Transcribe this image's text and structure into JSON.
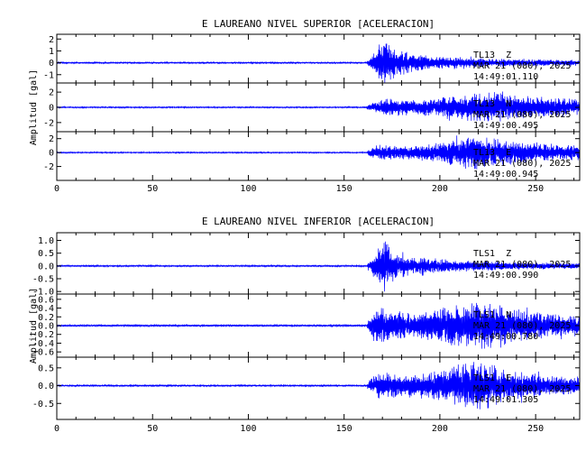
{
  "chart_data": [
    {
      "type": "line",
      "title": "E LAUREANO NIVEL SUPERIOR [ACELERACION]",
      "ylabel": "Amplitud [gal]",
      "xlim": [
        0,
        273
      ],
      "x_ticks": [
        0,
        50,
        100,
        150,
        200,
        250
      ],
      "color": "#0000ff",
      "traces": [
        {
          "station": "TL13",
          "component": "Z",
          "date": "MAR 21 (080), 2025",
          "time": "14:49:01.110",
          "ylim": [
            -1.7,
            2.4
          ],
          "y_ticks": [
            "2",
            "1",
            "0",
            "-1"
          ],
          "y_tick_values": [
            2,
            1,
            0,
            -1
          ],
          "onset": 162,
          "peak_time": 170,
          "peak_amp": 2.2,
          "noise": 0.04,
          "envelope": [
            [
              162,
              0.15
            ],
            [
              166,
              0.9
            ],
            [
              169,
              1.8
            ],
            [
              171,
              2.2
            ],
            [
              176,
              1.3
            ],
            [
              185,
              0.8
            ],
            [
              200,
              0.55
            ],
            [
              230,
              0.35
            ],
            [
              273,
              0.25
            ]
          ]
        },
        {
          "station": "TL13",
          "component": "N",
          "date": "MAR 21 (080), 2025",
          "time": "14:49:00.495",
          "ylim": [
            -3.2,
            3.2
          ],
          "y_ticks": [
            "2",
            "0",
            "-2"
          ],
          "y_tick_values": [
            2,
            0,
            -2
          ],
          "onset": 162,
          "peak_time": 220,
          "peak_amp": 2.0,
          "noise": 0.06,
          "envelope": [
            [
              162,
              0.3
            ],
            [
              168,
              1.0
            ],
            [
              175,
              1.2
            ],
            [
              190,
              1.0
            ],
            [
              205,
              1.5
            ],
            [
              220,
              2.0
            ],
            [
              240,
              1.6
            ],
            [
              260,
              1.3
            ],
            [
              273,
              1.1
            ]
          ]
        },
        {
          "station": "TL13",
          "component": "E",
          "date": "MAR 21 (080), 2025",
          "time": "14:49:00.945",
          "ylim": [
            -4.0,
            3.0
          ],
          "y_ticks": [
            "2",
            "0",
            "-2"
          ],
          "y_tick_values": [
            2,
            0,
            -2
          ],
          "onset": 162,
          "peak_time": 220,
          "peak_amp": 2.6,
          "noise": 0.06,
          "envelope": [
            [
              162,
              0.3
            ],
            [
              168,
              1.3
            ],
            [
              175,
              1.0
            ],
            [
              190,
              1.0
            ],
            [
              205,
              1.8
            ],
            [
              218,
              2.6
            ],
            [
              230,
              2.0
            ],
            [
              250,
              1.4
            ],
            [
              273,
              1.1
            ]
          ]
        }
      ]
    },
    {
      "type": "line",
      "title": "E LAUREANO NIVEL INFERIOR [ACELERACION]",
      "ylabel": "Amplitud [gal]",
      "xlim": [
        0,
        273
      ],
      "x_ticks": [
        0,
        50,
        100,
        150,
        200,
        250
      ],
      "color": "#0000ff",
      "traces": [
        {
          "station": "TLS1",
          "component": "Z",
          "date": "MAR 21 (080), 2025",
          "time": "14:49:00.990",
          "ylim": [
            -1.1,
            1.3
          ],
          "y_ticks": [
            "1.0",
            "0.5",
            "0.0",
            "-0.5",
            "-1.0"
          ],
          "y_tick_values": [
            1.0,
            0.5,
            0.0,
            -0.5,
            -1.0
          ],
          "onset": 162,
          "peak_time": 170,
          "peak_amp": 1.15,
          "noise": 0.02,
          "envelope": [
            [
              162,
              0.08
            ],
            [
              166,
              0.5
            ],
            [
              169,
              0.95
            ],
            [
              171,
              1.15
            ],
            [
              176,
              0.6
            ],
            [
              185,
              0.35
            ],
            [
              205,
              0.25
            ],
            [
              240,
              0.15
            ],
            [
              273,
              0.12
            ]
          ]
        },
        {
          "station": "TLS1",
          "component": "N",
          "date": "MAR 21 (080), 2025",
          "time": "14:49:00.780",
          "ylim": [
            -0.72,
            0.72
          ],
          "y_ticks": [
            "0.6",
            "0.4",
            "0.2",
            "0.0",
            "-0.2",
            "-0.4",
            "-0.6"
          ],
          "y_tick_values": [
            0.6,
            0.4,
            0.2,
            0.0,
            -0.2,
            -0.4,
            -0.6
          ],
          "onset": 162,
          "peak_time": 218,
          "peak_amp": 0.6,
          "noise": 0.015,
          "envelope": [
            [
              162,
              0.1
            ],
            [
              168,
              0.45
            ],
            [
              175,
              0.35
            ],
            [
              190,
              0.3
            ],
            [
              205,
              0.45
            ],
            [
              218,
              0.6
            ],
            [
              235,
              0.45
            ],
            [
              255,
              0.3
            ],
            [
              273,
              0.25
            ]
          ]
        },
        {
          "station": "TLS1",
          "component": "E",
          "date": "MAR 21 (080), 2025",
          "time": "14:49:01.305",
          "ylim": [
            -0.95,
            0.8
          ],
          "y_ticks": [
            "0.5",
            "0.0",
            "-0.5"
          ],
          "y_tick_values": [
            0.5,
            0.0,
            -0.5
          ],
          "onset": 162,
          "peak_time": 220,
          "peak_amp": 0.8,
          "noise": 0.015,
          "envelope": [
            [
              162,
              0.1
            ],
            [
              168,
              0.4
            ],
            [
              175,
              0.35
            ],
            [
              190,
              0.3
            ],
            [
              205,
              0.55
            ],
            [
              218,
              0.8
            ],
            [
              232,
              0.5
            ],
            [
              255,
              0.3
            ],
            [
              273,
              0.25
            ]
          ]
        }
      ]
    }
  ]
}
